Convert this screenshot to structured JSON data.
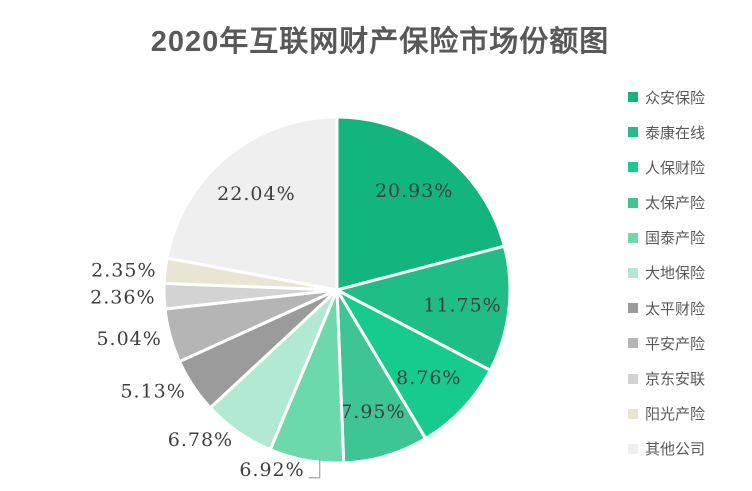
{
  "chart_data": {
    "type": "pie",
    "title": "2020年互联网财产保险市场份额图",
    "categories": [
      "众安保险",
      "泰康在线",
      "人保财险",
      "太保产险",
      "国泰产险",
      "大地保险",
      "太平财险",
      "平安产险",
      "京东安联",
      "阳光产险",
      "其他公司"
    ],
    "values": [
      20.93,
      11.75,
      8.76,
      7.95,
      6.92,
      6.78,
      5.13,
      5.04,
      2.36,
      2.35,
      22.04
    ],
    "labels": [
      "20.93%",
      "11.75%",
      "8.76%",
      "7.95%",
      "6.92%",
      "6.78%",
      "5.13%",
      "5.04%",
      "2.36%",
      "2.35%",
      "22.04%"
    ],
    "colors": [
      "#12B57E",
      "#1EBE86",
      "#15CB8E",
      "#3DC593",
      "#6CD9AB",
      "#B2E9D2",
      "#9B9B9B",
      "#B5B5B5",
      "#D3D3D3",
      "#E9E5D3",
      "#EFEFEF"
    ],
    "start_angle_deg": 0,
    "direction": "clockwise",
    "legend_position": "right",
    "inside_label_min_value": 7.5,
    "leader_line_indices": [
      4
    ],
    "slice_border_color": "#FFFFFF",
    "label_color": "#3f3f3f",
    "title_color": "#595959"
  },
  "legend": {
    "items": [
      {
        "label": "众安保险",
        "color": "#12B57E"
      },
      {
        "label": "泰康在线",
        "color": "#1EBE86"
      },
      {
        "label": "人保财险",
        "color": "#15CB8E"
      },
      {
        "label": "太保产险",
        "color": "#3DC593"
      },
      {
        "label": "国泰产险",
        "color": "#6CD9AB"
      },
      {
        "label": "大地保险",
        "color": "#B2E9D2"
      },
      {
        "label": "太平财险",
        "color": "#9B9B9B"
      },
      {
        "label": "平安产险",
        "color": "#B5B5B5"
      },
      {
        "label": "京东安联",
        "color": "#D3D3D3"
      },
      {
        "label": "阳光产险",
        "color": "#E9E5D3"
      },
      {
        "label": "其他公司",
        "color": "#EFEFEF"
      }
    ]
  }
}
